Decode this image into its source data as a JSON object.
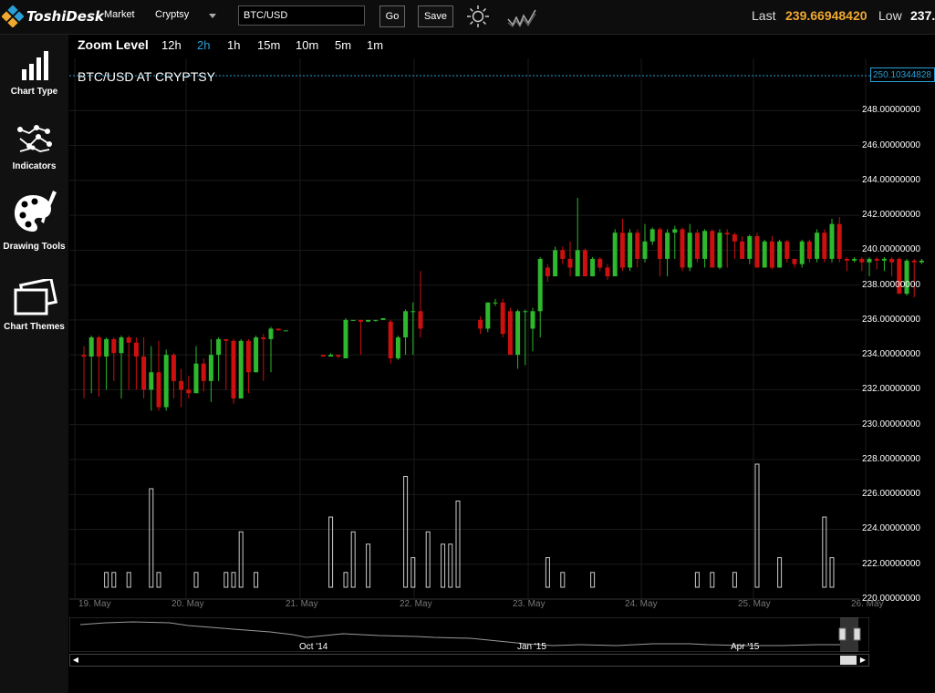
{
  "header": {
    "logo_text": "ToshiDesk",
    "market_label": "Market",
    "exchange_label": "Cryptsy",
    "pair_value": "BTC/USD",
    "go_label": "Go",
    "save_label": "Save",
    "last_label": "Last",
    "last_value": "239.66948420",
    "low_label": "Low",
    "low_value": "237.",
    "icons": [
      "sun-icon",
      "candles-icon"
    ]
  },
  "sidebar": {
    "items": [
      {
        "label": "Chart Type",
        "icon": "bar-chart-icon"
      },
      {
        "label": "Indicators",
        "icon": "indicators-icon"
      },
      {
        "label": "Drawing Tools",
        "icon": "palette-icon"
      },
      {
        "label": "Chart Themes",
        "icon": "themes-icon"
      }
    ]
  },
  "zoom": {
    "title": "Zoom Level",
    "options": [
      "12h",
      "2h",
      "1h",
      "15m",
      "10m",
      "5m",
      "1m"
    ],
    "active": "2h"
  },
  "chart_data": {
    "type": "candlestick",
    "title": "BTC/USD AT CRYPTSY",
    "current_price_label": "250.10344828",
    "y_ticks": [
      "248.00000000",
      "246.00000000",
      "244.00000000",
      "242.00000000",
      "240.00000000",
      "238.00000000",
      "236.00000000",
      "234.00000000",
      "232.00000000",
      "230.00000000",
      "228.00000000",
      "226.00000000",
      "224.00000000",
      "222.00000000",
      "220.00000000"
    ],
    "x_ticks": [
      "19. May",
      "20. May",
      "21. May",
      "22. May",
      "23. May",
      "24. May",
      "25. May",
      "26. May"
    ],
    "ylim": [
      220,
      250
    ],
    "colors": {
      "up": "#2db82d",
      "down": "#cc1010",
      "volume": "#cccccc",
      "grid": "#1a1a1a",
      "price_line": "#2a9fd6"
    },
    "candles": [
      {
        "t": 0.0,
        "o": 234.0,
        "c": 233.9,
        "h": 234.5,
        "l": 231.5
      },
      {
        "t": 0.5,
        "o": 233.9,
        "c": 235.0,
        "h": 235.1,
        "l": 231.8
      },
      {
        "t": 1.0,
        "o": 235.0,
        "c": 233.9,
        "h": 235.1,
        "l": 231.6
      },
      {
        "t": 1.5,
        "o": 233.9,
        "c": 234.9,
        "h": 235.0,
        "l": 232.0
      },
      {
        "t": 2.0,
        "o": 234.9,
        "c": 234.1,
        "h": 235.0,
        "l": 232.5
      },
      {
        "t": 2.5,
        "o": 234.1,
        "c": 235.0,
        "h": 235.1,
        "l": 231.5
      },
      {
        "t": 3.0,
        "o": 235.0,
        "c": 234.7,
        "h": 235.1,
        "l": 232.0
      },
      {
        "t": 3.5,
        "o": 234.7,
        "c": 233.9,
        "h": 235.0,
        "l": 232.0
      },
      {
        "t": 4.0,
        "o": 233.9,
        "c": 232.0,
        "h": 235.0,
        "l": 231.5
      },
      {
        "t": 4.5,
        "o": 232.0,
        "c": 233.0,
        "h": 234.5,
        "l": 230.8
      },
      {
        "t": 5.0,
        "o": 233.0,
        "c": 231.0,
        "h": 234.8,
        "l": 230.8
      },
      {
        "t": 5.5,
        "o": 231.0,
        "c": 234.0,
        "h": 234.3,
        "l": 230.8
      },
      {
        "t": 6.0,
        "o": 234.0,
        "c": 232.5,
        "h": 234.1,
        "l": 231.5
      },
      {
        "t": 6.5,
        "o": 232.5,
        "c": 232.0,
        "h": 233.2,
        "l": 231.0
      },
      {
        "t": 7.0,
        "o": 232.0,
        "c": 231.8,
        "h": 232.8,
        "l": 231.5
      },
      {
        "t": 7.5,
        "o": 231.8,
        "c": 233.5,
        "h": 234.5,
        "l": 231.8
      },
      {
        "t": 8.0,
        "o": 233.5,
        "c": 232.5,
        "h": 233.8,
        "l": 231.9
      },
      {
        "t": 8.5,
        "o": 232.5,
        "c": 234.0,
        "h": 234.9,
        "l": 231.3
      },
      {
        "t": 9.0,
        "o": 234.0,
        "c": 234.9,
        "h": 235.0,
        "l": 232.5
      },
      {
        "t": 9.5,
        "o": 234.9,
        "c": 234.8,
        "h": 234.9,
        "l": 232.0
      },
      {
        "t": 10.0,
        "o": 234.8,
        "c": 231.5,
        "h": 234.9,
        "l": 231.2
      },
      {
        "t": 10.5,
        "o": 231.5,
        "c": 234.8,
        "h": 234.9,
        "l": 231.5
      },
      {
        "t": 11.0,
        "o": 234.8,
        "c": 233.0,
        "h": 234.9,
        "l": 231.8
      },
      {
        "t": 11.5,
        "o": 233.0,
        "c": 235.0,
        "h": 235.1,
        "l": 233.0
      },
      {
        "t": 12.0,
        "o": 235.0,
        "c": 234.9,
        "h": 235.2,
        "l": 232.5
      },
      {
        "t": 12.5,
        "o": 234.9,
        "c": 235.5,
        "h": 235.6,
        "l": 233.0
      },
      {
        "t": 13.0,
        "o": 235.5,
        "c": 235.4,
        "h": 235.5,
        "l": 235.4
      },
      {
        "t": 13.5,
        "o": 235.4,
        "c": 235.4,
        "h": 235.4,
        "l": 235.4
      },
      {
        "t": 16.0,
        "o": 234.0,
        "c": 233.9,
        "h": 234.0,
        "l": 233.9
      },
      {
        "t": 16.5,
        "o": 233.9,
        "c": 234.0,
        "h": 234.1,
        "l": 233.9
      },
      {
        "t": 17.0,
        "o": 234.0,
        "c": 233.9,
        "h": 234.0,
        "l": 233.8
      },
      {
        "t": 17.5,
        "o": 233.8,
        "c": 236.0,
        "h": 236.1,
        "l": 233.8
      },
      {
        "t": 18.0,
        "o": 236.0,
        "c": 236.0,
        "h": 236.0,
        "l": 236.0
      },
      {
        "t": 18.5,
        "o": 236.0,
        "c": 235.9,
        "h": 236.0,
        "l": 234.0
      },
      {
        "t": 19.0,
        "o": 235.9,
        "c": 236.0,
        "h": 236.0,
        "l": 235.9
      },
      {
        "t": 19.5,
        "o": 236.0,
        "c": 236.0,
        "h": 236.0,
        "l": 235.9
      },
      {
        "t": 20.0,
        "o": 236.0,
        "c": 236.1,
        "h": 236.1,
        "l": 236.0
      },
      {
        "t": 20.5,
        "o": 235.9,
        "c": 233.8,
        "h": 236.0,
        "l": 233.5
      },
      {
        "t": 21.0,
        "o": 233.8,
        "c": 235.0,
        "h": 235.1,
        "l": 233.7
      },
      {
        "t": 21.5,
        "o": 235.0,
        "c": 236.5,
        "h": 236.6,
        "l": 234.0
      },
      {
        "t": 22.0,
        "o": 236.5,
        "c": 236.5,
        "h": 237.0,
        "l": 234.0
      },
      {
        "t": 22.5,
        "o": 236.5,
        "c": 235.5,
        "h": 238.8,
        "l": 235.0
      },
      {
        "t": 26.5,
        "o": 236.0,
        "c": 235.5,
        "h": 236.2,
        "l": 235.2
      },
      {
        "t": 27.0,
        "o": 235.5,
        "c": 237.0,
        "h": 237.0,
        "l": 235.3
      },
      {
        "t": 27.5,
        "o": 237.0,
        "c": 237.0,
        "h": 237.2,
        "l": 236.8
      },
      {
        "t": 28.0,
        "o": 237.0,
        "c": 235.2,
        "h": 237.2,
        "l": 235.0
      },
      {
        "t": 28.5,
        "o": 236.5,
        "c": 234.0,
        "h": 236.7,
        "l": 234.0
      },
      {
        "t": 29.0,
        "o": 234.0,
        "c": 236.5,
        "h": 236.6,
        "l": 233.2
      },
      {
        "t": 29.5,
        "o": 236.5,
        "c": 236.5,
        "h": 236.6,
        "l": 233.4
      },
      {
        "t": 30.0,
        "o": 235.5,
        "c": 236.5,
        "h": 236.7,
        "l": 234.2
      },
      {
        "t": 30.5,
        "o": 236.5,
        "c": 239.5,
        "h": 239.6,
        "l": 235.0
      },
      {
        "t": 31.0,
        "o": 239.0,
        "c": 238.5,
        "h": 239.2,
        "l": 238.2
      },
      {
        "t": 31.5,
        "o": 238.5,
        "c": 240.0,
        "h": 240.2,
        "l": 238.5
      },
      {
        "t": 32.0,
        "o": 240.0,
        "c": 239.5,
        "h": 240.2,
        "l": 239.2
      },
      {
        "t": 32.5,
        "o": 239.5,
        "c": 239.0,
        "h": 240.5,
        "l": 238.5
      },
      {
        "t": 33.0,
        "o": 238.5,
        "c": 240.0,
        "h": 243.0,
        "l": 238.5
      },
      {
        "t": 33.5,
        "o": 240.0,
        "c": 238.5,
        "h": 240.1,
        "l": 238.5
      },
      {
        "t": 34.0,
        "o": 238.5,
        "c": 239.5,
        "h": 239.6,
        "l": 238.5
      },
      {
        "t": 34.5,
        "o": 239.5,
        "c": 239.0,
        "h": 239.6,
        "l": 238.8
      },
      {
        "t": 35.0,
        "o": 239.0,
        "c": 238.5,
        "h": 239.2,
        "l": 238.3
      },
      {
        "t": 35.5,
        "o": 238.5,
        "c": 241.0,
        "h": 241.2,
        "l": 238.5
      },
      {
        "t": 36.0,
        "o": 241.0,
        "c": 239.0,
        "h": 241.8,
        "l": 238.8
      },
      {
        "t": 36.5,
        "o": 239.0,
        "c": 241.0,
        "h": 241.2,
        "l": 238.8
      },
      {
        "t": 37.0,
        "o": 241.0,
        "c": 239.5,
        "h": 241.2,
        "l": 239.0
      },
      {
        "t": 37.5,
        "o": 239.5,
        "c": 240.5,
        "h": 241.5,
        "l": 239.3
      },
      {
        "t": 38.0,
        "o": 240.5,
        "c": 241.2,
        "h": 241.3,
        "l": 240.3
      },
      {
        "t": 38.5,
        "o": 241.2,
        "c": 239.5,
        "h": 241.3,
        "l": 238.5
      },
      {
        "t": 39.0,
        "o": 239.5,
        "c": 241.0,
        "h": 241.2,
        "l": 238.5
      },
      {
        "t": 39.5,
        "o": 241.0,
        "c": 241.2,
        "h": 241.4,
        "l": 239.5
      },
      {
        "t": 40.0,
        "o": 241.2,
        "c": 239.0,
        "h": 241.3,
        "l": 238.8
      },
      {
        "t": 40.5,
        "o": 239.0,
        "c": 241.0,
        "h": 241.5,
        "l": 238.8
      },
      {
        "t": 41.0,
        "o": 241.0,
        "c": 239.5,
        "h": 241.2,
        "l": 239.3
      },
      {
        "t": 41.5,
        "o": 239.5,
        "c": 241.1,
        "h": 241.2,
        "l": 239.0
      },
      {
        "t": 42.0,
        "o": 241.1,
        "c": 239.0,
        "h": 241.2,
        "l": 239.0
      },
      {
        "t": 42.5,
        "o": 239.0,
        "c": 241.0,
        "h": 241.2,
        "l": 238.9
      },
      {
        "t": 43.0,
        "o": 241.0,
        "c": 240.9,
        "h": 241.2,
        "l": 239.0
      },
      {
        "t": 43.5,
        "o": 240.9,
        "c": 240.5,
        "h": 241.0,
        "l": 239.5
      },
      {
        "t": 44.0,
        "o": 240.5,
        "c": 239.5,
        "h": 240.8,
        "l": 239.5
      },
      {
        "t": 44.5,
        "o": 239.5,
        "c": 240.8,
        "h": 240.9,
        "l": 239.2
      },
      {
        "t": 45.0,
        "o": 240.8,
        "c": 239.0,
        "h": 241.0,
        "l": 239.0
      },
      {
        "t": 45.5,
        "o": 239.0,
        "c": 240.5,
        "h": 240.6,
        "l": 239.0
      },
      {
        "t": 46.0,
        "o": 240.5,
        "c": 239.0,
        "h": 240.8,
        "l": 238.9
      },
      {
        "t": 46.5,
        "o": 239.0,
        "c": 240.5,
        "h": 240.6,
        "l": 239.0
      },
      {
        "t": 47.0,
        "o": 240.5,
        "c": 239.5,
        "h": 240.6,
        "l": 239.3
      },
      {
        "t": 47.5,
        "o": 239.5,
        "c": 239.2,
        "h": 239.5,
        "l": 239.0
      },
      {
        "t": 48.0,
        "o": 239.2,
        "c": 240.5,
        "h": 240.6,
        "l": 239.0
      },
      {
        "t": 48.5,
        "o": 240.5,
        "c": 239.5,
        "h": 240.6,
        "l": 239.3
      },
      {
        "t": 49.0,
        "o": 239.5,
        "c": 241.0,
        "h": 241.2,
        "l": 239.3
      },
      {
        "t": 49.5,
        "o": 241.0,
        "c": 239.5,
        "h": 241.2,
        "l": 239.3
      },
      {
        "t": 50.0,
        "o": 239.5,
        "c": 241.5,
        "h": 241.8,
        "l": 239.3
      },
      {
        "t": 50.5,
        "o": 241.5,
        "c": 239.5,
        "h": 241.9,
        "l": 239.3
      },
      {
        "t": 51.0,
        "o": 239.5,
        "c": 239.4,
        "h": 239.6,
        "l": 238.8
      },
      {
        "t": 51.5,
        "o": 239.4,
        "c": 239.5,
        "h": 239.6,
        "l": 239.3
      },
      {
        "t": 52.0,
        "o": 239.5,
        "c": 239.3,
        "h": 239.6,
        "l": 238.8
      },
      {
        "t": 52.5,
        "o": 239.3,
        "c": 239.5,
        "h": 239.6,
        "l": 238.5
      },
      {
        "t": 53.0,
        "o": 239.5,
        "c": 239.4,
        "h": 239.6,
        "l": 238.9
      },
      {
        "t": 53.5,
        "o": 239.4,
        "c": 239.5,
        "h": 239.6,
        "l": 238.8
      },
      {
        "t": 54.0,
        "o": 239.5,
        "c": 239.3,
        "h": 239.6,
        "l": 238.5
      },
      {
        "t": 54.5,
        "o": 239.5,
        "c": 237.5,
        "h": 239.6,
        "l": 237.5
      },
      {
        "t": 55.0,
        "o": 237.5,
        "c": 239.4,
        "h": 239.5,
        "l": 237.4
      },
      {
        "t": 55.5,
        "o": 239.4,
        "c": 239.3,
        "h": 239.5,
        "l": 237.3
      },
      {
        "t": 56.0,
        "o": 239.3,
        "c": 239.4,
        "h": 239.5,
        "l": 239.2
      }
    ],
    "volume": [
      {
        "t": 1.5,
        "v": 0.12
      },
      {
        "t": 2.0,
        "v": 0.12
      },
      {
        "t": 3.0,
        "v": 0.12
      },
      {
        "t": 4.5,
        "v": 0.8
      },
      {
        "t": 5.0,
        "v": 0.12
      },
      {
        "t": 7.5,
        "v": 0.12
      },
      {
        "t": 9.5,
        "v": 0.12
      },
      {
        "t": 10.0,
        "v": 0.12
      },
      {
        "t": 10.5,
        "v": 0.45
      },
      {
        "t": 11.5,
        "v": 0.12
      },
      {
        "t": 16.5,
        "v": 0.57
      },
      {
        "t": 17.5,
        "v": 0.12
      },
      {
        "t": 18.0,
        "v": 0.45
      },
      {
        "t": 19.0,
        "v": 0.35
      },
      {
        "t": 21.5,
        "v": 0.9
      },
      {
        "t": 22.0,
        "v": 0.24
      },
      {
        "t": 23.0,
        "v": 0.45
      },
      {
        "t": 24.0,
        "v": 0.35
      },
      {
        "t": 24.5,
        "v": 0.35
      },
      {
        "t": 25.0,
        "v": 0.7
      },
      {
        "t": 31.0,
        "v": 0.24
      },
      {
        "t": 32.0,
        "v": 0.12
      },
      {
        "t": 34.0,
        "v": 0.12
      },
      {
        "t": 41.0,
        "v": 0.12
      },
      {
        "t": 42.0,
        "v": 0.12
      },
      {
        "t": 43.5,
        "v": 0.12
      },
      {
        "t": 45.0,
        "v": 1.0
      },
      {
        "t": 46.5,
        "v": 0.24
      },
      {
        "t": 49.5,
        "v": 0.57
      },
      {
        "t": 50.0,
        "v": 0.24
      }
    ]
  },
  "navigator": {
    "labels": [
      "Oct '14",
      "Jan '15",
      "Apr '15"
    ]
  }
}
